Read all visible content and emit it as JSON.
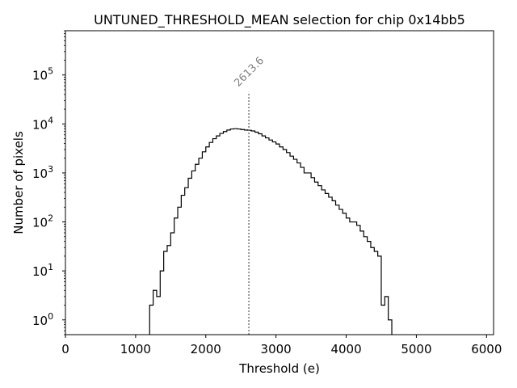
{
  "chart_data": {
    "type": "histogram",
    "title": "UNTUNED_THRESHOLD_MEAN selection for chip 0x14bb5",
    "xlabel": "Threshold (e)",
    "ylabel": "Number of pixels",
    "xlim": [
      0,
      6100
    ],
    "ylim": [
      0.5,
      800000
    ],
    "yscale": "log",
    "grid": false,
    "x_ticks": [
      0,
      1000,
      2000,
      3000,
      4000,
      5000,
      6000
    ],
    "x_tick_labels": [
      "0",
      "1000",
      "2000",
      "3000",
      "4000",
      "5000",
      "6000"
    ],
    "y_tick_exponents": [
      0,
      1,
      2,
      3,
      4,
      5
    ],
    "y_tick_base": "10",
    "bin_width": 50,
    "series": [
      {
        "name": "pixels",
        "color": "#000000",
        "bins": [
          [
            1200,
            2
          ],
          [
            1250,
            4
          ],
          [
            1300,
            3
          ],
          [
            1350,
            10
          ],
          [
            1400,
            25
          ],
          [
            1450,
            33
          ],
          [
            1500,
            60
          ],
          [
            1550,
            120
          ],
          [
            1600,
            200
          ],
          [
            1650,
            350
          ],
          [
            1700,
            500
          ],
          [
            1750,
            780
          ],
          [
            1800,
            1100
          ],
          [
            1850,
            1500
          ],
          [
            1900,
            2000
          ],
          [
            1950,
            2700
          ],
          [
            2000,
            3400
          ],
          [
            2050,
            4200
          ],
          [
            2100,
            5000
          ],
          [
            2150,
            5700
          ],
          [
            2200,
            6400
          ],
          [
            2250,
            7000
          ],
          [
            2300,
            7500
          ],
          [
            2350,
            7900
          ],
          [
            2400,
            8000
          ],
          [
            2450,
            7900
          ],
          [
            2500,
            7700
          ],
          [
            2550,
            7500
          ],
          [
            2600,
            7400
          ],
          [
            2650,
            7200
          ],
          [
            2700,
            6800
          ],
          [
            2750,
            6300
          ],
          [
            2800,
            5700
          ],
          [
            2850,
            5200
          ],
          [
            2900,
            4700
          ],
          [
            2950,
            4300
          ],
          [
            3000,
            3900
          ],
          [
            3050,
            3400
          ],
          [
            3100,
            3000
          ],
          [
            3150,
            2600
          ],
          [
            3200,
            2200
          ],
          [
            3250,
            1900
          ],
          [
            3300,
            1600
          ],
          [
            3350,
            1300
          ],
          [
            3400,
            1000
          ],
          [
            3450,
            1000
          ],
          [
            3500,
            800
          ],
          [
            3550,
            650
          ],
          [
            3600,
            550
          ],
          [
            3650,
            450
          ],
          [
            3700,
            380
          ],
          [
            3750,
            320
          ],
          [
            3800,
            270
          ],
          [
            3850,
            220
          ],
          [
            3900,
            180
          ],
          [
            3950,
            150
          ],
          [
            4000,
            120
          ],
          [
            4050,
            100
          ],
          [
            4100,
            100
          ],
          [
            4150,
            85
          ],
          [
            4200,
            65
          ],
          [
            4250,
            50
          ],
          [
            4300,
            40
          ],
          [
            4350,
            30
          ],
          [
            4400,
            25
          ],
          [
            4450,
            20
          ],
          [
            4500,
            2
          ],
          [
            4550,
            3
          ],
          [
            4600,
            1
          ]
        ]
      }
    ],
    "annotations": [
      {
        "type": "vline",
        "x": 2613.6,
        "ymax": 45000,
        "style": "dotted",
        "color": "#808080",
        "label": "2613.6"
      }
    ]
  }
}
